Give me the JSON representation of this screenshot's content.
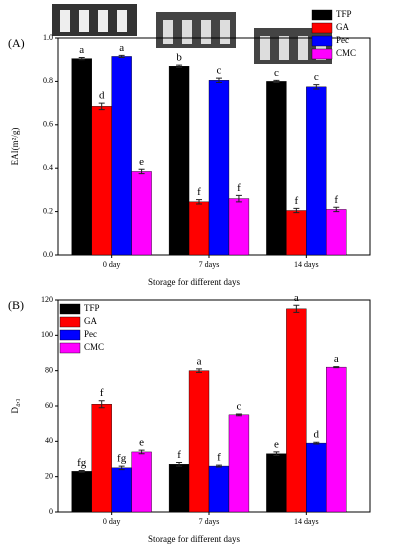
{
  "chart_data": [
    {
      "type": "bar",
      "panel_label": "(A)",
      "ylabel": "EAI(m²/g)",
      "xlabel": "Storage for different days",
      "categories": [
        "0 day",
        "7 days",
        "14 days"
      ],
      "ylim": [
        0,
        1.0
      ],
      "yticks": [
        {
          "value": 0,
          "label": "0.0"
        },
        0.2,
        0.4,
        0.6,
        0.8,
        {
          "value": 1,
          "label": "1.0"
        }
      ],
      "legend": "upper right",
      "series": [
        {
          "name": "TFP",
          "color": "#000000",
          "values": [
            0.905,
            0.87,
            0.8
          ],
          "errors": [
            0.005,
            0.005,
            0.005
          ],
          "letters": [
            "a",
            "b",
            "c"
          ]
        },
        {
          "name": "GA",
          "color": "#ff0000",
          "values": [
            0.685,
            0.245,
            0.205
          ],
          "errors": [
            0.015,
            0.01,
            0.01
          ],
          "letters": [
            "d",
            "f",
            "f"
          ]
        },
        {
          "name": "Pec",
          "color": "#0000ff",
          "values": [
            0.915,
            0.805,
            0.775
          ],
          "errors": [
            0.005,
            0.01,
            0.01
          ],
          "letters": [
            "a",
            "c",
            "c"
          ]
        },
        {
          "name": "CMC",
          "color": "#ff00ff",
          "values": [
            0.385,
            0.26,
            0.21
          ],
          "errors": [
            0.01,
            0.015,
            0.01
          ],
          "letters": [
            "e",
            "f",
            "f"
          ]
        }
      ]
    },
    {
      "type": "bar",
      "panel_label": "(B)",
      "ylabel": "D₄,₃",
      "xlabel": "Storage for different days",
      "categories": [
        "0 day",
        "7 days",
        "14 days"
      ],
      "ylim": [
        0,
        120
      ],
      "yticks": [
        0,
        20,
        40,
        60,
        80,
        100,
        120
      ],
      "legend": "upper left",
      "series": [
        {
          "name": "TFP",
          "color": "#000000",
          "values": [
            23,
            27,
            33
          ],
          "errors": [
            0.5,
            1,
            1
          ],
          "letters": [
            "fg",
            "f",
            "e"
          ]
        },
        {
          "name": "GA",
          "color": "#ff0000",
          "values": [
            61,
            80,
            115
          ],
          "errors": [
            2,
            1,
            2
          ],
          "letters": [
            "f",
            "a",
            "a"
          ]
        },
        {
          "name": "Pec",
          "color": "#0000ff",
          "values": [
            25,
            26,
            39
          ],
          "errors": [
            1,
            0.5,
            0.5
          ],
          "letters": [
            "fg",
            "f",
            "d"
          ]
        },
        {
          "name": "CMC",
          "color": "#ff00ff",
          "values": [
            34,
            55,
            82
          ],
          "errors": [
            1,
            0.5,
            0.3
          ],
          "letters": [
            "e",
            "c",
            "a"
          ]
        }
      ]
    }
  ]
}
